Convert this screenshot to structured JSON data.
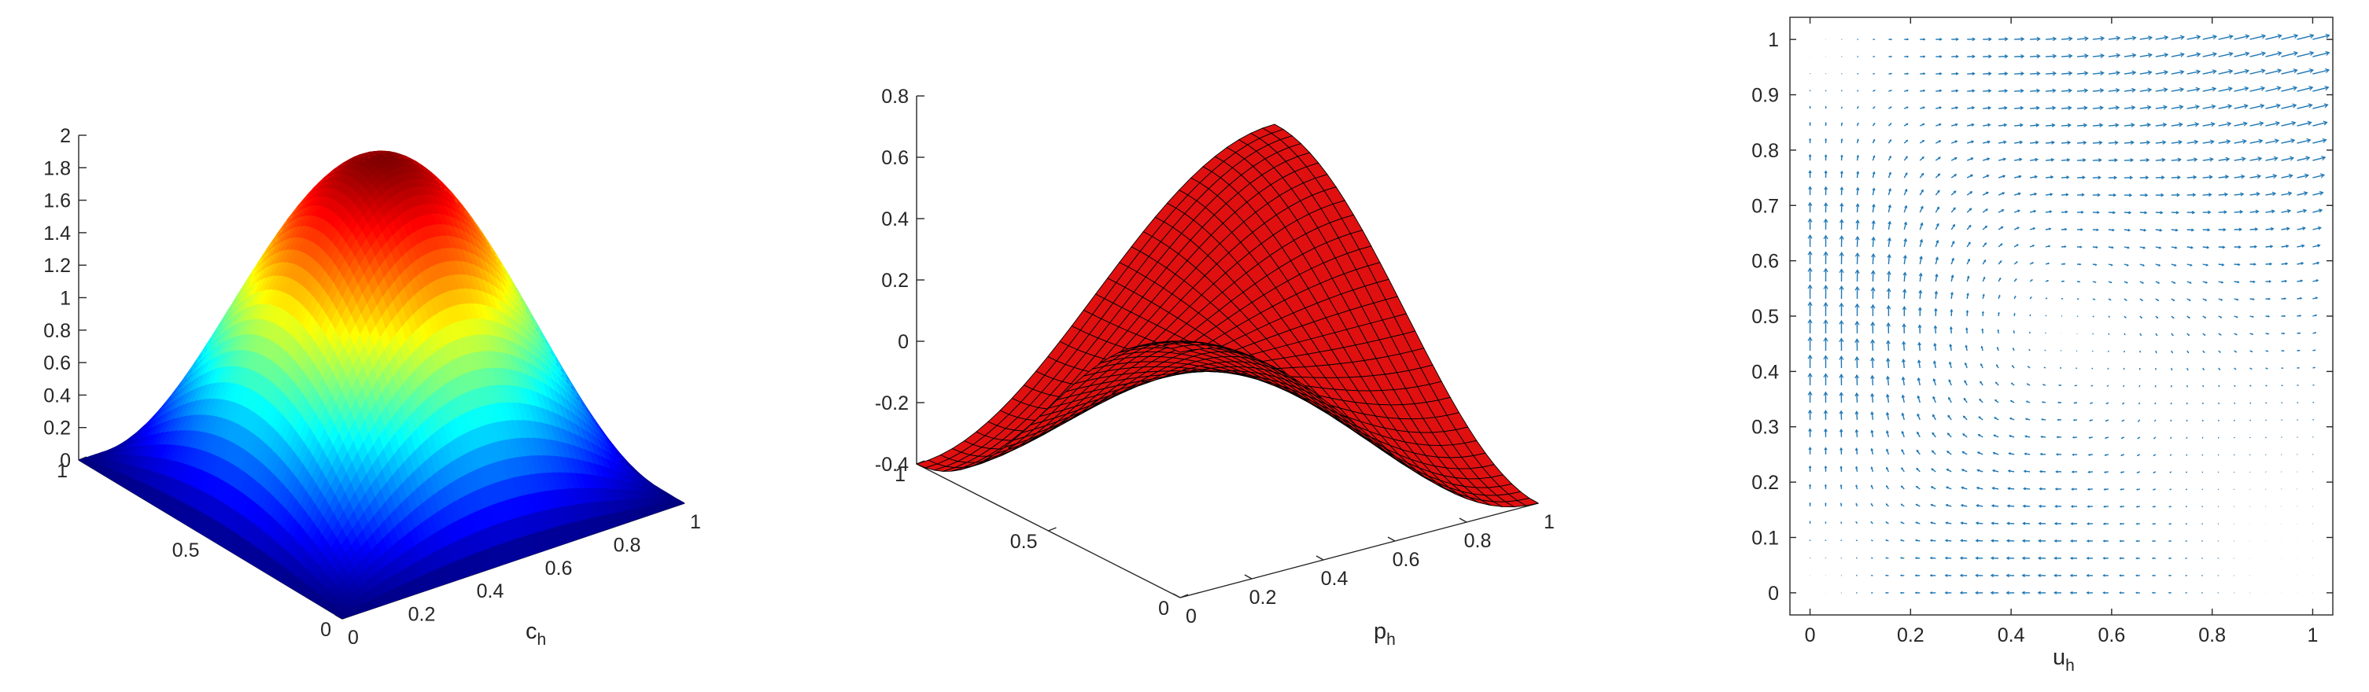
{
  "chart_data": [
    {
      "type": "surface",
      "function": "2*sin(pi*x)*sin(pi*y)",
      "colormap": "jet",
      "xlabel": "c",
      "xlabel_sub": "h",
      "ylabel": "",
      "zlabel": "",
      "xlim": [
        0,
        1
      ],
      "ylim": [
        0,
        1
      ],
      "zlim": [
        0,
        2
      ],
      "x_ticks": [
        "0",
        "0.2",
        "0.4",
        "0.6",
        "0.8",
        "1"
      ],
      "y_ticks": [
        "0",
        "0.5",
        "1"
      ],
      "z_ticks": [
        "0",
        "0.2",
        "0.4",
        "0.6",
        "0.8",
        "1",
        "1.2",
        "1.4",
        "1.6",
        "1.8",
        "2"
      ],
      "grid": false
    },
    {
      "type": "surface",
      "function": "0.4*cos(pi*x)*cos(pi*y)",
      "face_color": "#e01010",
      "edge_color": "#000000",
      "xlabel": "p",
      "xlabel_sub": "h",
      "ylabel": "",
      "zlabel": "",
      "xlim": [
        0,
        1
      ],
      "ylim": [
        0,
        1
      ],
      "zlim": [
        -0.4,
        0.8
      ],
      "x_ticks": [
        "0",
        "0.2",
        "0.4",
        "0.6",
        "0.8",
        "1"
      ],
      "y_ticks": [
        "0",
        "0.5",
        "1"
      ],
      "z_ticks": [
        "-0.4",
        "-0.2",
        "0",
        "0.2",
        "0.4",
        "0.6",
        "0.8"
      ],
      "grid": false
    },
    {
      "type": "quiver",
      "arrow_color": "#1f77b4",
      "xlabel": "u",
      "xlabel_sub": "h",
      "ylabel": "",
      "xlim": [
        -0.04,
        1.04
      ],
      "ylim": [
        -0.04,
        1.04
      ],
      "x_ticks": [
        "0",
        "0.2",
        "0.4",
        "0.6",
        "0.8",
        "1"
      ],
      "y_ticks": [
        "0",
        "0.1",
        "0.2",
        "0.3",
        "0.4",
        "0.5",
        "0.6",
        "0.7",
        "0.8",
        "0.9",
        "1"
      ],
      "grid_points": 33,
      "grid": false
    }
  ]
}
